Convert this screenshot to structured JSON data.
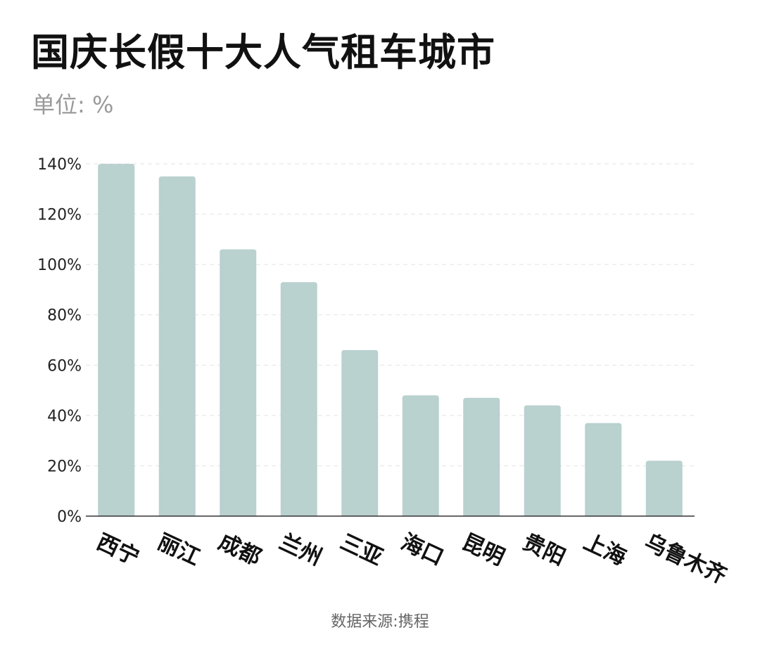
{
  "header": {
    "title": "国庆长假十大人气租车城市",
    "unit": "单位: %"
  },
  "footer": {
    "source": "数据来源:携程"
  },
  "colors": {
    "bar": "#b9d1cf",
    "grid": "#e3e3e3",
    "axis": "#333333"
  },
  "chart_data": {
    "type": "bar",
    "title": "国庆长假十大人气租车城市",
    "subtitle": "单位: %",
    "categories": [
      "西宁",
      "丽江",
      "成都",
      "兰州",
      "三亚",
      "海口",
      "昆明",
      "贵阳",
      "上海",
      "乌鲁木齐"
    ],
    "values": [
      140,
      135,
      106,
      93,
      66,
      48,
      47,
      44,
      37,
      22
    ],
    "ylim": [
      0,
      140
    ],
    "yticks": [
      0,
      20,
      40,
      60,
      80,
      100,
      120,
      140
    ],
    "ytick_labels": [
      "0%",
      "20%",
      "40%",
      "60%",
      "80%",
      "100%",
      "120%",
      "140%"
    ],
    "grid": true,
    "legend": "none"
  }
}
